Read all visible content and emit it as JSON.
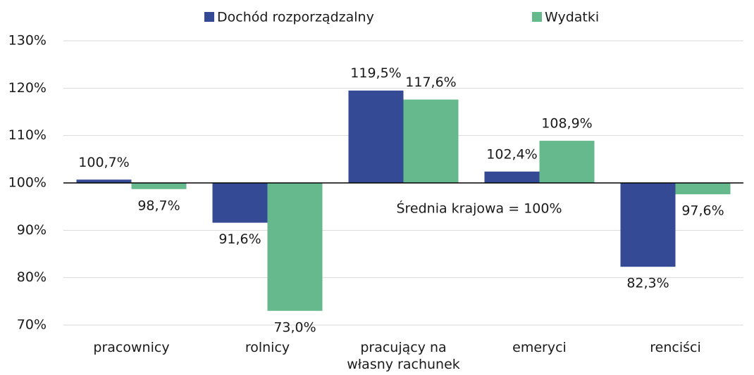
{
  "chart_data": {
    "type": "bar",
    "categories": [
      "pracownicy",
      "rolnicy",
      "pracujący na własny rachunek",
      "emeryci",
      "renciści"
    ],
    "series": [
      {
        "name": "Dochód rozporządzalny",
        "color": "#344a94",
        "values": [
          100.7,
          91.6,
          119.5,
          102.4,
          82.3
        ],
        "value_labels": [
          "100,7%",
          "91,6%",
          "119,5%",
          "102,4%",
          "82,3%"
        ]
      },
      {
        "name": "Wydatki",
        "color": "#66b98d",
        "values": [
          98.7,
          73.0,
          117.6,
          108.9,
          97.6
        ],
        "value_labels": [
          "98,7%",
          "73,0%",
          "117,6%",
          "108,9%",
          "97,6%"
        ]
      }
    ],
    "baseline": 100,
    "annotation": "Średnia krajowa = 100%",
    "ylim": [
      70,
      130
    ],
    "yticks": [
      {
        "value": 70,
        "label": "70%"
      },
      {
        "value": 80,
        "label": "80%"
      },
      {
        "value": 90,
        "label": "90%"
      },
      {
        "value": 100,
        "label": "100%"
      },
      {
        "value": 110,
        "label": "110%"
      },
      {
        "value": 120,
        "label": "120%"
      },
      {
        "value": 130,
        "label": "130%"
      }
    ],
    "grid": true,
    "legend": "top"
  }
}
